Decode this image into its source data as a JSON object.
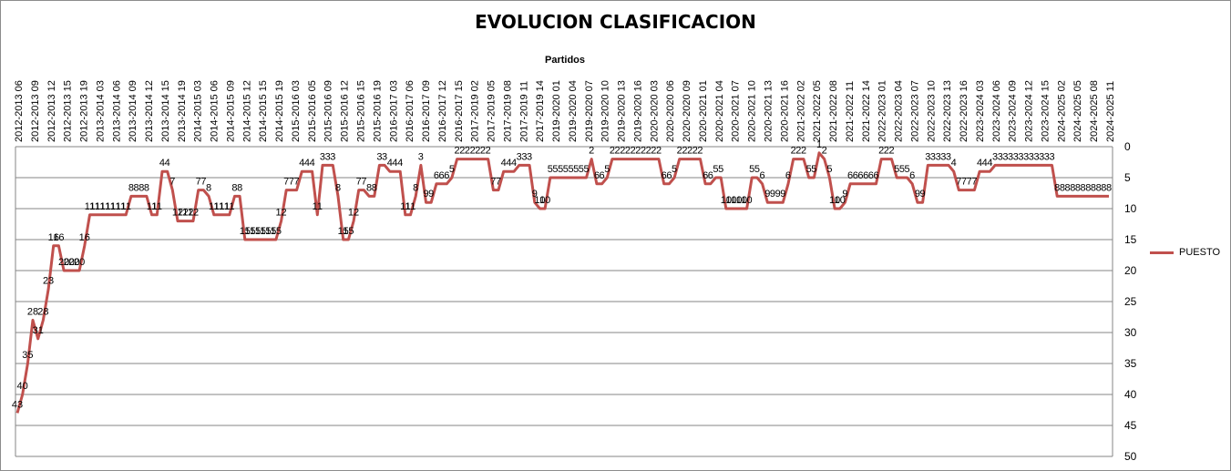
{
  "chart_data": {
    "type": "line",
    "title": "EVOLUCION CLASIFICACION",
    "xlabel": "Partidos",
    "ylabel": "",
    "y_reversed": true,
    "ylim": [
      0,
      50
    ],
    "yticks": [
      0,
      5,
      10,
      15,
      20,
      25,
      30,
      35,
      40,
      45,
      50
    ],
    "x_position": "top",
    "grid": true,
    "legend": "right",
    "color": "#c0504d",
    "x_tick_labels": [
      "2012-2013 06",
      "2012-2013 09",
      "2012-2013 12",
      "2012-2013 15",
      "2012-2013 19",
      "2013-2014 03",
      "2013-2014 06",
      "2013-2014 09",
      "2013-2014 12",
      "2013-2014 15",
      "2013-2014 19",
      "2014-2015 03",
      "2014-2015 06",
      "2014-2015 09",
      "2014-2015 12",
      "2014-2015 15",
      "2014-2015 19",
      "2015-2016 03",
      "2015-2016 05",
      "2015-2016 09",
      "2015-2016 12",
      "2015-2016 15",
      "2015-2016 19",
      "2016-2017 03",
      "2016-2017 06",
      "2016-2017 09",
      "2016-2017 12",
      "2016-2017 15",
      "2017-2019 02",
      "2017-2019 05",
      "2017-2019 08",
      "2017-2019 11",
      "2017-2019 14",
      "2019-2020 01",
      "2019-2020 04",
      "2019-2020 07",
      "2019-2020 10",
      "2019-2020 13",
      "2019-2020 16",
      "2020-2020 03",
      "2020-2020 06",
      "2020-2020 09",
      "2020-2021 01",
      "2020-2021 04",
      "2020-2021 07",
      "2020-2021 10",
      "2020-2021 13",
      "2020-2021 16",
      "2021-2022 02",
      "2021-2022 05",
      "2021-2022 08",
      "2021-2022 11",
      "2021-2022 14",
      "2022-2023 01",
      "2022-2023 04",
      "2022-2023 07",
      "2022-2023 10",
      "2022-2023 13",
      "2022-2023 16",
      "2023-2024 03",
      "2023-2024 06",
      "2023-2024 09",
      "2023-2024 12",
      "2023-2024 15",
      "2024-2025 02",
      "2024-2025 05",
      "2024-2025 08",
      "2024-2025 11"
    ],
    "series": [
      {
        "name": "PUESTO",
        "values": [
          43,
          40,
          35,
          28,
          31,
          28,
          23,
          16,
          16,
          20,
          20,
          20,
          20,
          16,
          11,
          11,
          11,
          11,
          11,
          11,
          11,
          11,
          8,
          8,
          8,
          8,
          11,
          11,
          4,
          4,
          7,
          12,
          12,
          12,
          12,
          7,
          7,
          8,
          11,
          11,
          11,
          11,
          8,
          8,
          15,
          15,
          15,
          15,
          15,
          15,
          15,
          12,
          7,
          7,
          7,
          4,
          4,
          4,
          11,
          3,
          3,
          3,
          8,
          15,
          15,
          12,
          7,
          7,
          8,
          8,
          3,
          3,
          4,
          4,
          4,
          11,
          11,
          8,
          3,
          9,
          9,
          6,
          6,
          6,
          5,
          2,
          2,
          2,
          2,
          2,
          2,
          2,
          7,
          7,
          4,
          4,
          4,
          3,
          3,
          3,
          9,
          10,
          10,
          5,
          5,
          5,
          5,
          5,
          5,
          5,
          5,
          2,
          6,
          6,
          5,
          2,
          2,
          2,
          2,
          2,
          2,
          2,
          2,
          2,
          2,
          6,
          6,
          5,
          2,
          2,
          2,
          2,
          2,
          6,
          6,
          5,
          5,
          10,
          10,
          10,
          10,
          10,
          5,
          5,
          6,
          9,
          9,
          9,
          9,
          6,
          2,
          2,
          2,
          5,
          5,
          1,
          2,
          5,
          10,
          10,
          9,
          6,
          6,
          6,
          6,
          6,
          6,
          2,
          2,
          2,
          5,
          5,
          5,
          6,
          9,
          9,
          3,
          3,
          3,
          3,
          3,
          4,
          7,
          7,
          7,
          7,
          4,
          4,
          4,
          3,
          3,
          3,
          3,
          3,
          3,
          3,
          3,
          3,
          3,
          3,
          3,
          8,
          8,
          8,
          8,
          8,
          8,
          8,
          8,
          8,
          8,
          8
        ]
      }
    ]
  }
}
